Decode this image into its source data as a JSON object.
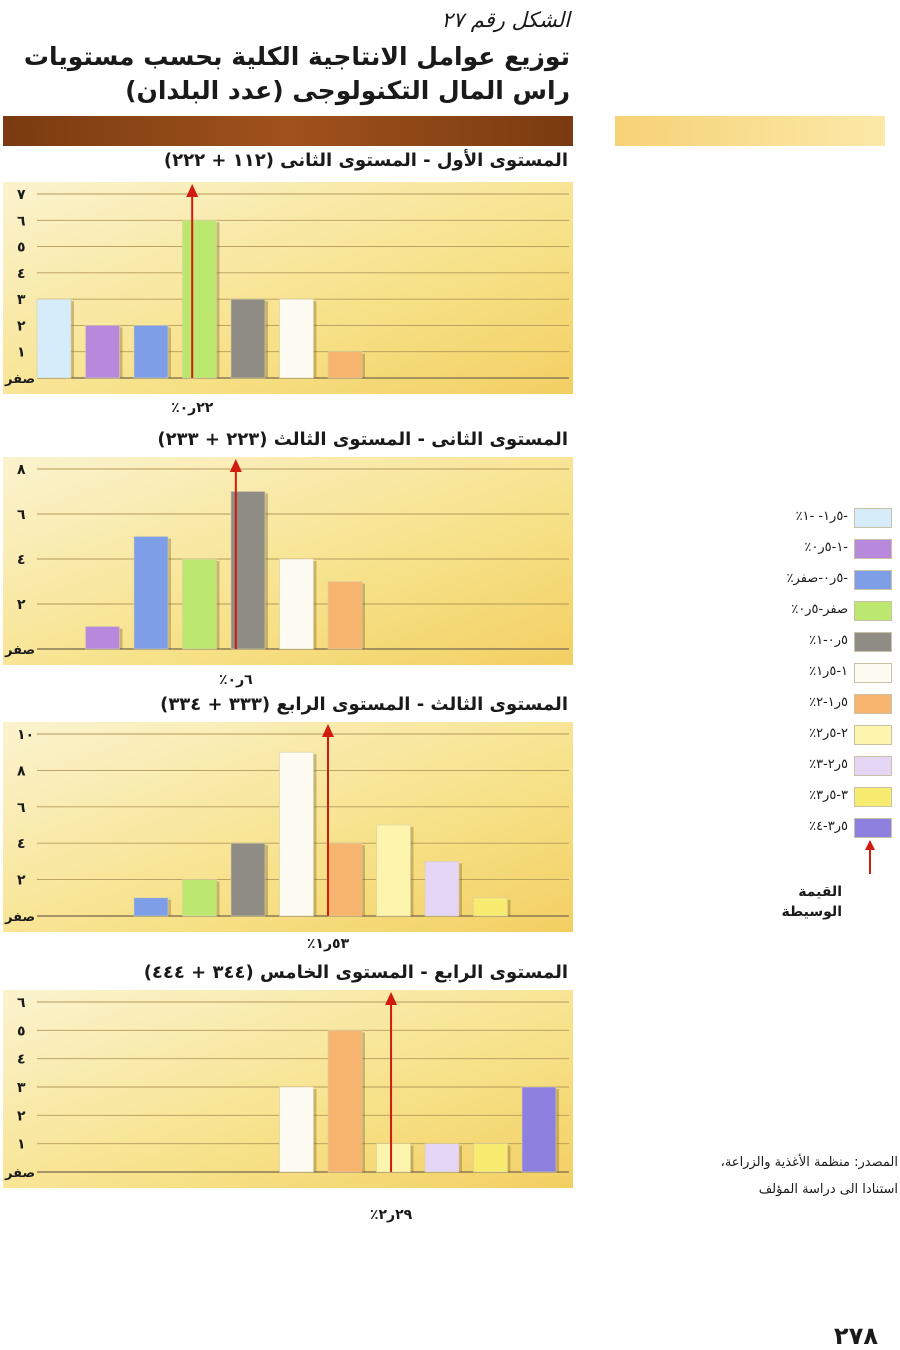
{
  "figure_label": "الشكل رقم ٢٧",
  "title_line1": "توزيع عوامل الانتاجية الكلية بحسب مستويات",
  "title_line2": "راس المال التكنولوجى (عدد البلدان)",
  "legend": {
    "items": [
      {
        "label": "-٥ر١- -١٪",
        "color": "#d6ecfa"
      },
      {
        "label": "-١-٥ر٠٪",
        "color": "#b888dd"
      },
      {
        "label": "-٥ر٠-صفر٪",
        "color": "#7e9fe8"
      },
      {
        "label": "صفر-٥ر٠٪",
        "color": "#bce870"
      },
      {
        "label": "٥ر٠-١٪",
        "color": "#8e8c84"
      },
      {
        "label": "١-٥ر١٪",
        "color": "#fdfbf2"
      },
      {
        "label": "٥ر١-٢٪",
        "color": "#f6b46e"
      },
      {
        "label": "٢-٥ر٢٪",
        "color": "#fdf4ae"
      },
      {
        "label": "٥ر٢-٣٪",
        "color": "#e4d6f4"
      },
      {
        "label": "٣-٥ر٣٪",
        "color": "#f8ec70"
      },
      {
        "label": "٥ر٣-٤٪",
        "color": "#8d80de"
      }
    ],
    "median_label_line1": "القيمة",
    "median_label_line2": "الوسيطة"
  },
  "source_line1": "المصدر: منظمة الأغذية والزراعة،",
  "source_line2": "استنادا الى دراسة المؤلف",
  "page_number": "٢٧٨",
  "chart_data": [
    {
      "type": "bar",
      "title": "المستوى الأول - المستوى الثانى (١١٢ + ٢٢٢)",
      "categories": [
        "-٥ر١- -١٪",
        "-١-٥ر٠٪",
        "-٥ر٠-صفر٪",
        "صفر-٥ر٠٪",
        "٥ر٠-١٪",
        "١-٥ر١٪",
        "٥ر١-٢٪",
        "٢-٥ر٢٪",
        "٥ر٢-٣٪",
        "٣-٥ر٣٪",
        "٥ر٣-٤٪"
      ],
      "values": [
        3,
        2,
        2,
        6,
        3,
        3,
        1,
        0,
        0,
        0,
        0
      ],
      "ylim": [
        0,
        7
      ],
      "yticks": [
        "صفر",
        "١",
        "٢",
        "٣",
        "٤",
        "٥",
        "٦",
        "٧"
      ],
      "median_position": 3.2,
      "median_label": "٢٢ر٠٪",
      "grid": true
    },
    {
      "type": "bar",
      "title": "المستوى الثانى - المستوى الثالث (٢٢٣ + ٢٣٣)",
      "categories": [
        "-٥ر١- -١٪",
        "-١-٥ر٠٪",
        "-٥ر٠-صفر٪",
        "صفر-٥ر٠٪",
        "٥ر٠-١٪",
        "١-٥ر١٪",
        "٥ر١-٢٪",
        "٢-٥ر٢٪",
        "٥ر٢-٣٪",
        "٣-٥ر٣٪",
        "٥ر٣-٤٪"
      ],
      "values": [
        0,
        1,
        5,
        4,
        7,
        4,
        3,
        0,
        0,
        0,
        0
      ],
      "ylim": [
        0,
        8
      ],
      "yticks": [
        "صفر",
        "٢",
        "٤",
        "٦",
        "٨"
      ],
      "median_position": 4.1,
      "median_label": "٦ر٠٪",
      "grid": true
    },
    {
      "type": "bar",
      "title": "المستوى الثالث - المستوى الرابع (٣٣٣ + ٣٣٤)",
      "categories": [
        "-٥ر١- -١٪",
        "-١-٥ر٠٪",
        "-٥ر٠-صفر٪",
        "صفر-٥ر٠٪",
        "٥ر٠-١٪",
        "١-٥ر١٪",
        "٥ر١-٢٪",
        "٢-٥ر٢٪",
        "٥ر٢-٣٪",
        "٣-٥ر٣٪",
        "٥ر٣-٤٪"
      ],
      "values": [
        0,
        0,
        1,
        2,
        4,
        9,
        4,
        5,
        3,
        1,
        0
      ],
      "ylim": [
        0,
        10
      ],
      "yticks": [
        "صفر",
        "٢",
        "٤",
        "٦",
        "٨",
        "١٠"
      ],
      "median_position": 6.0,
      "median_label": "٥٣ر١٪",
      "grid": true
    },
    {
      "type": "bar",
      "title": "المستوى الرابع - المستوى الخامس (٣٤٤ + ٤٤٤)",
      "categories": [
        "-٥ر١- -١٪",
        "-١-٥ر٠٪",
        "-٥ر٠-صفر٪",
        "صفر-٥ر٠٪",
        "٥ر٠-١٪",
        "١-٥ر١٪",
        "٥ر١-٢٪",
        "٢-٥ر٢٪",
        "٥ر٢-٣٪",
        "٣-٥ر٣٪",
        "٥ر٣-٤٪"
      ],
      "values": [
        0,
        0,
        0,
        0,
        0,
        3,
        5,
        1,
        1,
        1,
        3
      ],
      "ylim": [
        0,
        6
      ],
      "yticks": [
        "صفر",
        "١",
        "٢",
        "٣",
        "٤",
        "٥",
        "٦"
      ],
      "median_position": 7.3,
      "median_label": "٢٩ر٢٪",
      "grid": true
    }
  ]
}
